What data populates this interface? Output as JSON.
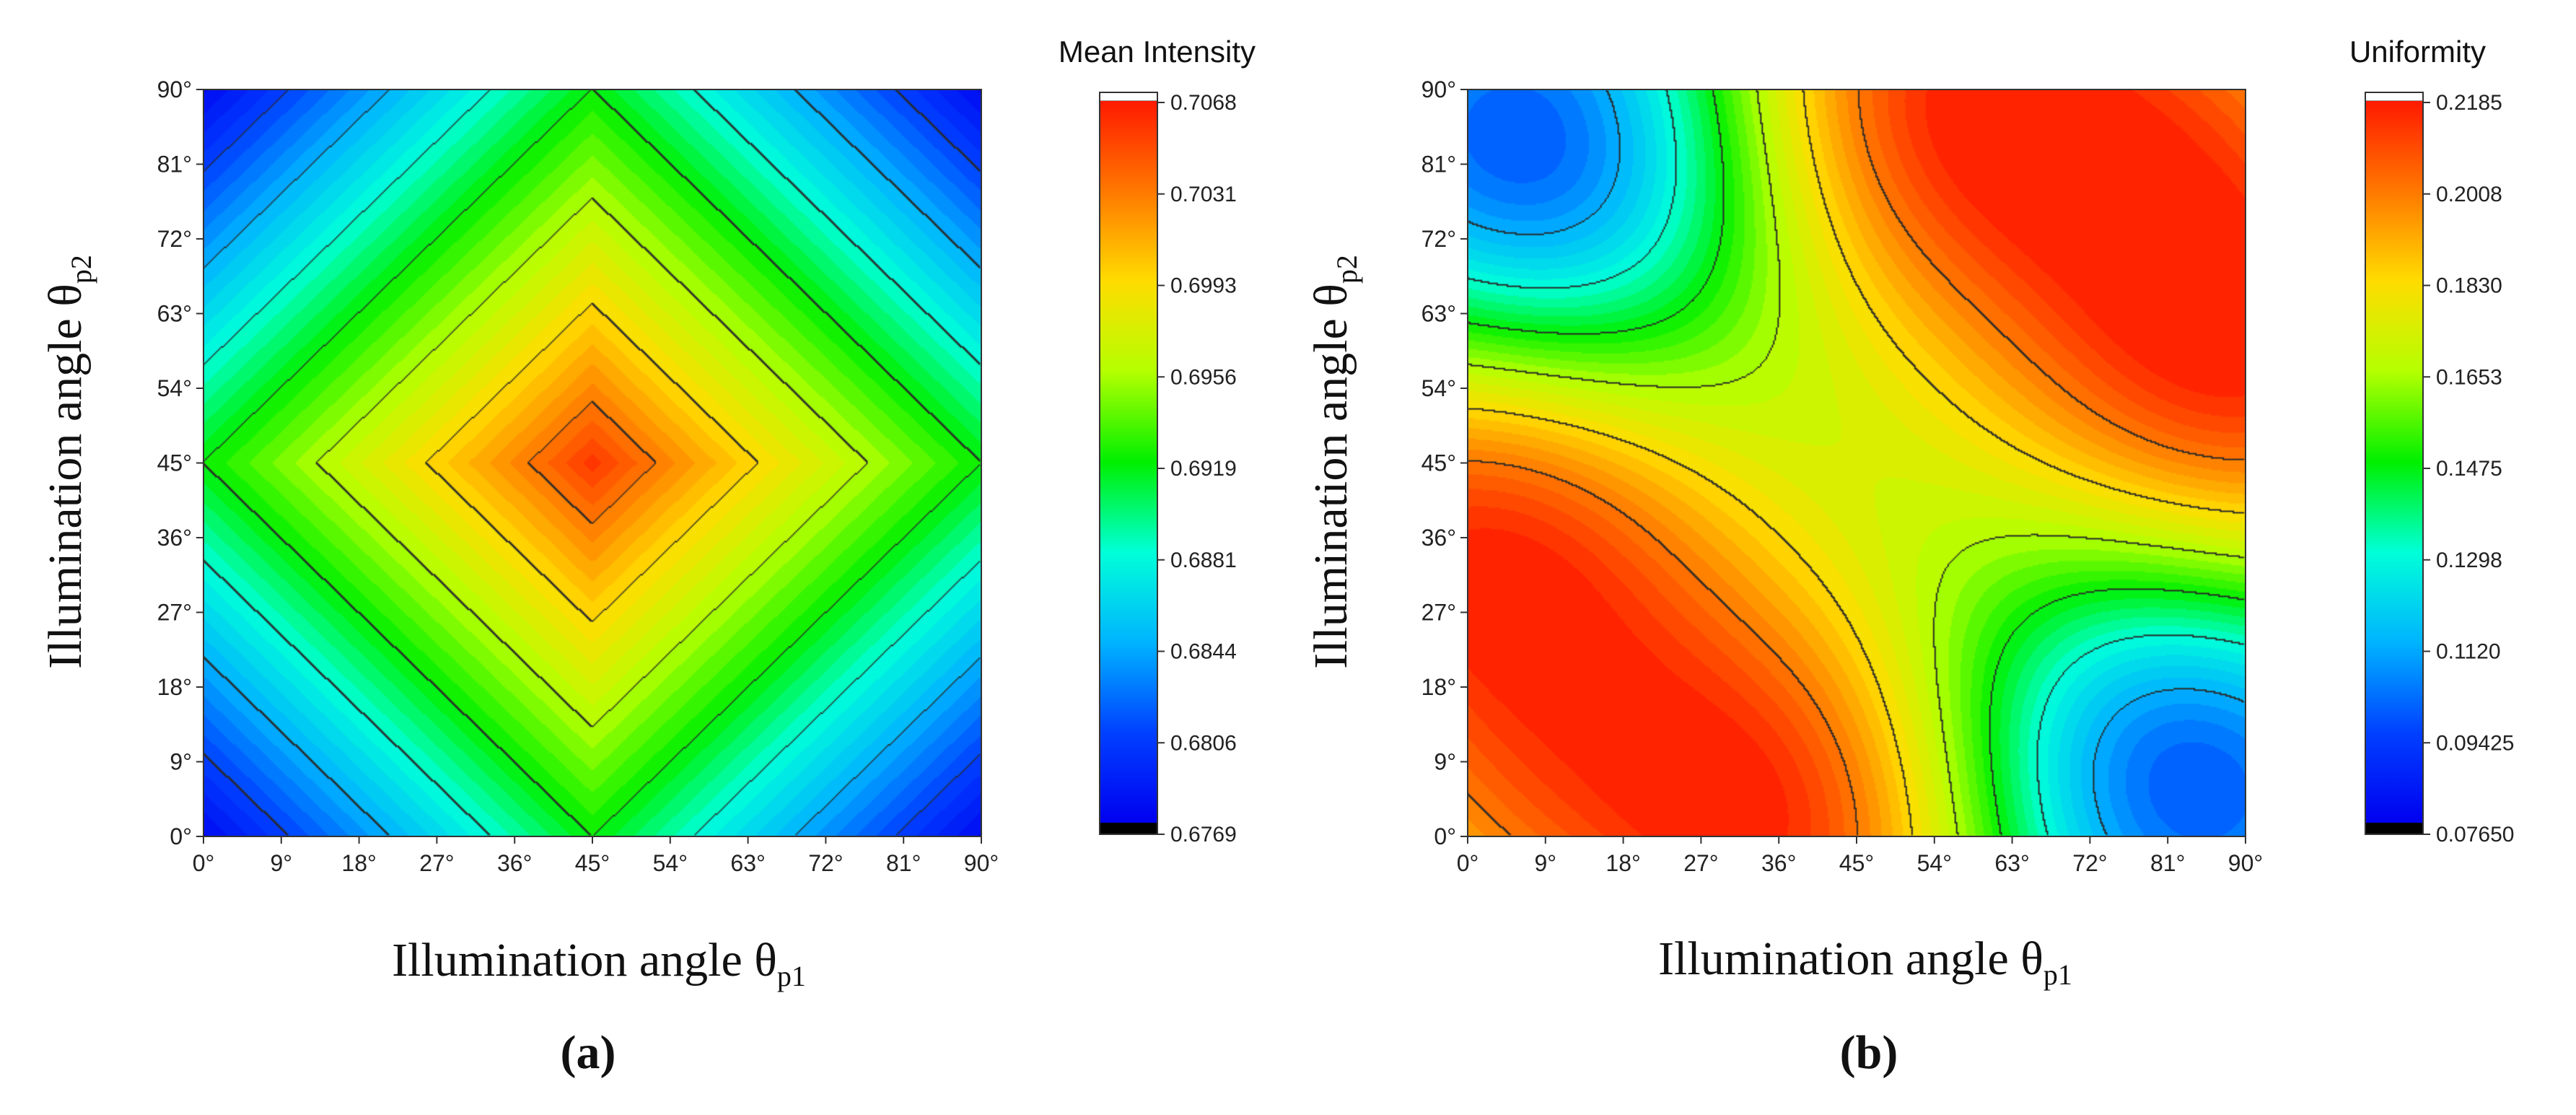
{
  "chart_data": [
    {
      "type": "heatmap",
      "panel_label": "(a)",
      "title": "Mean Intensity",
      "xlabel": "Illumination angle θ",
      "xlabel_sub": "p1",
      "ylabel": "Illumination angle θ",
      "ylabel_sub": "p2",
      "x": [
        0,
        9,
        18,
        27,
        36,
        45,
        54,
        63,
        72,
        81,
        90
      ],
      "y": [
        0,
        9,
        18,
        27,
        36,
        45,
        54,
        63,
        72,
        81,
        90
      ],
      "x_tick_labels": [
        "0°",
        "9°",
        "18°",
        "27°",
        "36°",
        "45°",
        "54°",
        "63°",
        "72°",
        "81°",
        "90°"
      ],
      "y_tick_labels": [
        "0°",
        "9°",
        "18°",
        "27°",
        "36°",
        "45°",
        "54°",
        "63°",
        "72°",
        "81°",
        "90°"
      ],
      "xlim": [
        0,
        90
      ],
      "ylim": [
        0,
        90
      ],
      "zlim": [
        0.6769,
        0.7068
      ],
      "colorbar_ticks": [
        "0.7068",
        "0.7031",
        "0.6993",
        "0.6956",
        "0.6919",
        "0.6881",
        "0.6844",
        "0.6806",
        "0.6769"
      ],
      "model": {
        "kind": "diamond",
        "center": [
          45,
          45
        ],
        "peak": 0.7058,
        "edge": 0.6919,
        "corner": 0.6775
      }
    },
    {
      "type": "heatmap",
      "panel_label": "(b)",
      "title": "Uniformity",
      "xlabel": "Illumination angle θ",
      "xlabel_sub": "p1",
      "ylabel": "Illumination angle θ",
      "ylabel_sub": "p2",
      "x": [
        0,
        9,
        18,
        27,
        36,
        45,
        54,
        63,
        72,
        81,
        90
      ],
      "y": [
        0,
        9,
        18,
        27,
        36,
        45,
        54,
        63,
        72,
        81,
        90
      ],
      "x_tick_labels": [
        "0°",
        "9°",
        "18°",
        "27°",
        "36°",
        "45°",
        "54°",
        "63°",
        "72°",
        "81°",
        "90°"
      ],
      "y_tick_labels": [
        "0°",
        "9°",
        "18°",
        "27°",
        "36°",
        "45°",
        "54°",
        "63°",
        "72°",
        "81°",
        "90°"
      ],
      "xlim": [
        0,
        90
      ],
      "ylim": [
        0,
        90
      ],
      "zlim": [
        0.0765,
        0.2185
      ],
      "colorbar_ticks": [
        "0.2185",
        "0.2008",
        "0.1830",
        "0.1653",
        "0.1475",
        "0.1298",
        "0.1120",
        "0.09425",
        "0.07650"
      ],
      "model": {
        "kind": "sources",
        "base": 0.147,
        "sources": [
          {
            "x": 9,
            "y": 81,
            "amp": -0.062,
            "sigma": 20
          },
          {
            "x": 81,
            "y": 9,
            "amp": -0.062,
            "sigma": 20
          },
          {
            "x": 36,
            "y": 0,
            "amp": 0.068,
            "sigma": 22
          },
          {
            "x": 0,
            "y": 36,
            "amp": 0.068,
            "sigma": 22
          },
          {
            "x": 54,
            "y": 90,
            "amp": 0.066,
            "sigma": 22
          },
          {
            "x": 90,
            "y": 54,
            "amp": 0.066,
            "sigma": 22
          },
          {
            "x": 90,
            "y": 90,
            "amp": 0.02,
            "sigma": 18
          },
          {
            "x": 0,
            "y": 0,
            "amp": 0.012,
            "sigma": 14
          }
        ]
      }
    }
  ]
}
